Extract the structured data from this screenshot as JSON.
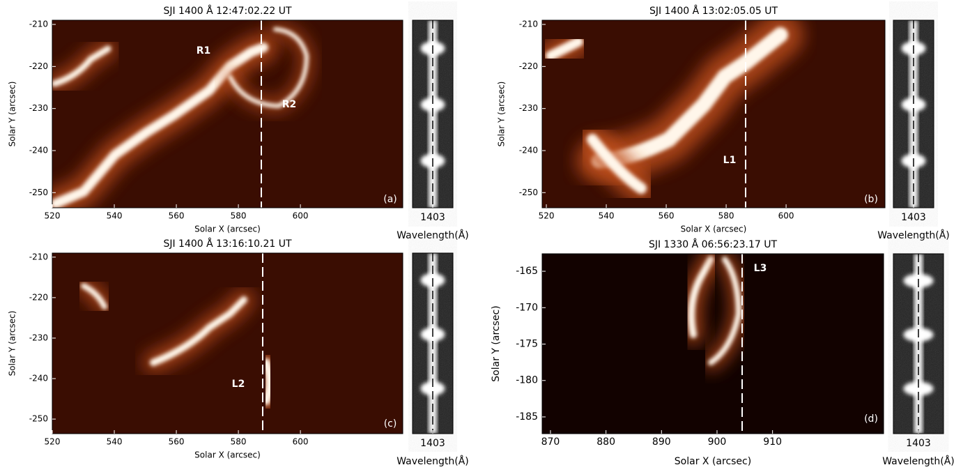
{
  "chart_data": [
    {
      "type": "image",
      "title": "SJI 1400 Å 12:47:02.22 UT",
      "x_label": "Solar X (arcsec)",
      "y_label": "Solar Y (arcsec)",
      "xlim": [
        520,
        633
      ],
      "ylim": [
        -253.6,
        -209
      ],
      "xticks": [
        520,
        540,
        560,
        580,
        600
      ],
      "yticks": [
        -210,
        -220,
        -230,
        -240,
        -250
      ],
      "annotations": [
        "R1",
        "R2"
      ],
      "panel_label": "(a)",
      "spectrum": {
        "xlim": [
          1402,
          1404
        ],
        "xticks": [
          1403
        ],
        "x_label": "Wavelength(Å)"
      }
    },
    {
      "type": "image",
      "title": "SJI 1400 Å 13:02:05.05 UT",
      "x_label": "Solar X (arcsec)",
      "y_label": "Solar Y (arcsec)",
      "xlim": [
        518.6,
        633
      ],
      "ylim": [
        -253.6,
        -209
      ],
      "xticks": [
        520,
        540,
        560,
        580,
        600
      ],
      "yticks": [
        -210,
        -220,
        -230,
        -240,
        -250
      ],
      "annotations": [
        "L1"
      ],
      "panel_label": "(b)",
      "spectrum": {
        "xlim": [
          1402,
          1404
        ],
        "xticks": [
          1403
        ],
        "x_label": "Wavelength(Å)"
      }
    },
    {
      "type": "image",
      "title": "SJI 1400 Å 13:16:10.21 UT",
      "x_label": "Solar X (arcsec)",
      "y_label": "Solar Y (arcsec)",
      "xlim": [
        520,
        633
      ],
      "ylim": [
        -253.6,
        -209
      ],
      "xticks": [
        520,
        540,
        560,
        580,
        600
      ],
      "yticks": [
        -210,
        -220,
        -230,
        -240,
        -250
      ],
      "annotations": [
        "L2"
      ],
      "panel_label": "(c)",
      "spectrum": {
        "xlim": [
          1402,
          1404
        ],
        "xticks": [
          1403
        ],
        "x_label": "Wavelength(Å)"
      }
    },
    {
      "type": "image",
      "title": "SJI 1330 Å 06:56:23.17 UT",
      "x_label": "Solar X (arcsec)",
      "y_label": "Solar Y (arcsec)",
      "xlim": [
        868.5,
        930
      ],
      "ylim": [
        -187.3,
        -162.6
      ],
      "xticks": [
        870,
        880,
        890,
        900,
        910
      ],
      "yticks": [
        -165,
        -170,
        -175,
        -180,
        -185
      ],
      "annotations": [
        "L3"
      ],
      "panel_label": "(d)",
      "spectrum": {
        "xlim": [
          1402,
          1404
        ],
        "xticks": [
          1403
        ],
        "x_label": "Wavelength(Å)"
      }
    }
  ]
}
